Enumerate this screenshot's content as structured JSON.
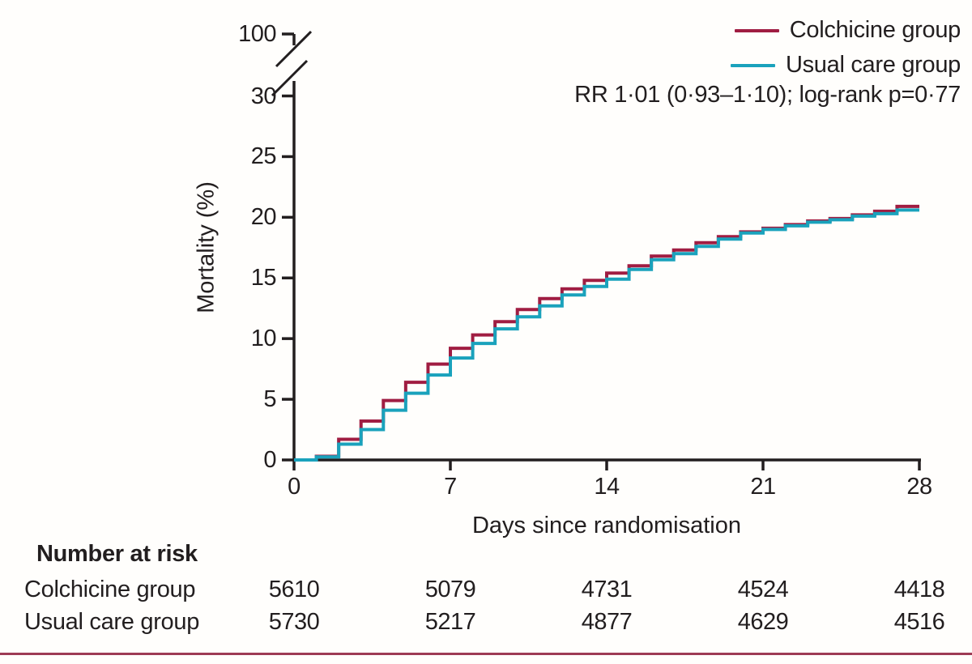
{
  "colors": {
    "colchicine": "#a01d42",
    "usual_care": "#1aa2bc",
    "axis": "#221e1f",
    "bottom_rule": "#9d3b55"
  },
  "legend": {
    "items": [
      {
        "label": "Colchicine group",
        "color": "#a01d42"
      },
      {
        "label": "Usual care group",
        "color": "#1aa2bc"
      }
    ]
  },
  "annotation": "RR 1·01 (0·93–1·10); log-rank p=0·77",
  "chart_data": {
    "type": "line",
    "subtype": "kaplan-meier-step",
    "title": "",
    "xlabel": "Days since randomisation",
    "ylabel": "Mortality (%)",
    "x_ticks": [
      0,
      7,
      14,
      21,
      28
    ],
    "y_ticks": [
      0,
      5,
      10,
      15,
      20,
      25,
      30
    ],
    "y_axis_break_top_label": 100,
    "xlim": [
      0,
      28
    ],
    "ylim": [
      0,
      30
    ],
    "grid": false,
    "legend_position": "top-right",
    "x": [
      0,
      1,
      2,
      3,
      4,
      5,
      6,
      7,
      8,
      9,
      10,
      11,
      12,
      13,
      14,
      15,
      16,
      17,
      18,
      19,
      20,
      21,
      22,
      23,
      24,
      25,
      26,
      27,
      28
    ],
    "series": [
      {
        "name": "Colchicine group",
        "color": "#a01d42",
        "values": [
          0,
          0.3,
          1.7,
          3.2,
          4.9,
          6.4,
          7.9,
          9.2,
          10.3,
          11.4,
          12.4,
          13.3,
          14.1,
          14.8,
          15.4,
          16.0,
          16.8,
          17.3,
          17.9,
          18.4,
          18.8,
          19.1,
          19.4,
          19.7,
          19.9,
          20.2,
          20.5,
          20.9,
          20.9
        ]
      },
      {
        "name": "Usual care group",
        "color": "#1aa2bc",
        "values": [
          0,
          0.25,
          1.3,
          2.5,
          4.1,
          5.5,
          7.0,
          8.4,
          9.6,
          10.8,
          11.8,
          12.7,
          13.6,
          14.3,
          14.9,
          15.7,
          16.5,
          17.0,
          17.6,
          18.2,
          18.7,
          19.0,
          19.3,
          19.6,
          19.8,
          20.1,
          20.3,
          20.6,
          20.6
        ]
      }
    ],
    "annotation": "RR 1·01 (0·93–1·10); log-rank p=0·77"
  },
  "risk_table": {
    "title": "Number at risk",
    "days": [
      0,
      7,
      14,
      21,
      28
    ],
    "rows": [
      {
        "label": "Colchicine group",
        "values": [
          "5610",
          "5079",
          "4731",
          "4524",
          "4418"
        ]
      },
      {
        "label": "Usual care group",
        "values": [
          "5730",
          "5217",
          "4877",
          "4629",
          "4516"
        ]
      }
    ]
  }
}
